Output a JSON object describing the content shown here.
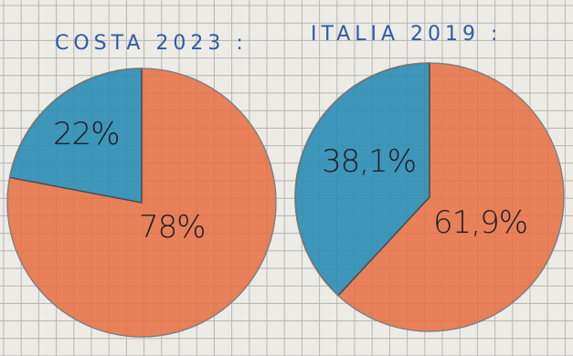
{
  "colors": {
    "paper": "#ecebe6",
    "grid": "#b7b6b2",
    "blue": "#2b8db4",
    "orange": "#e86d3f",
    "title_ink": "#2f5aa8",
    "label_ink": "#1d1d22"
  },
  "chart_data": [
    {
      "type": "pie",
      "title": "COSTA 2023 :",
      "slices": [
        {
          "value": 22,
          "label": "22%",
          "color": "#2b8db4"
        },
        {
          "value": 78,
          "label": "78%",
          "color": "#e86d3f"
        }
      ]
    },
    {
      "type": "pie",
      "title": "ITALIA 2019 :",
      "slices": [
        {
          "value": 38.1,
          "label": "38,1%",
          "color": "#2b8db4"
        },
        {
          "value": 61.9,
          "label": "61,9%",
          "color": "#e86d3f"
        }
      ]
    }
  ]
}
